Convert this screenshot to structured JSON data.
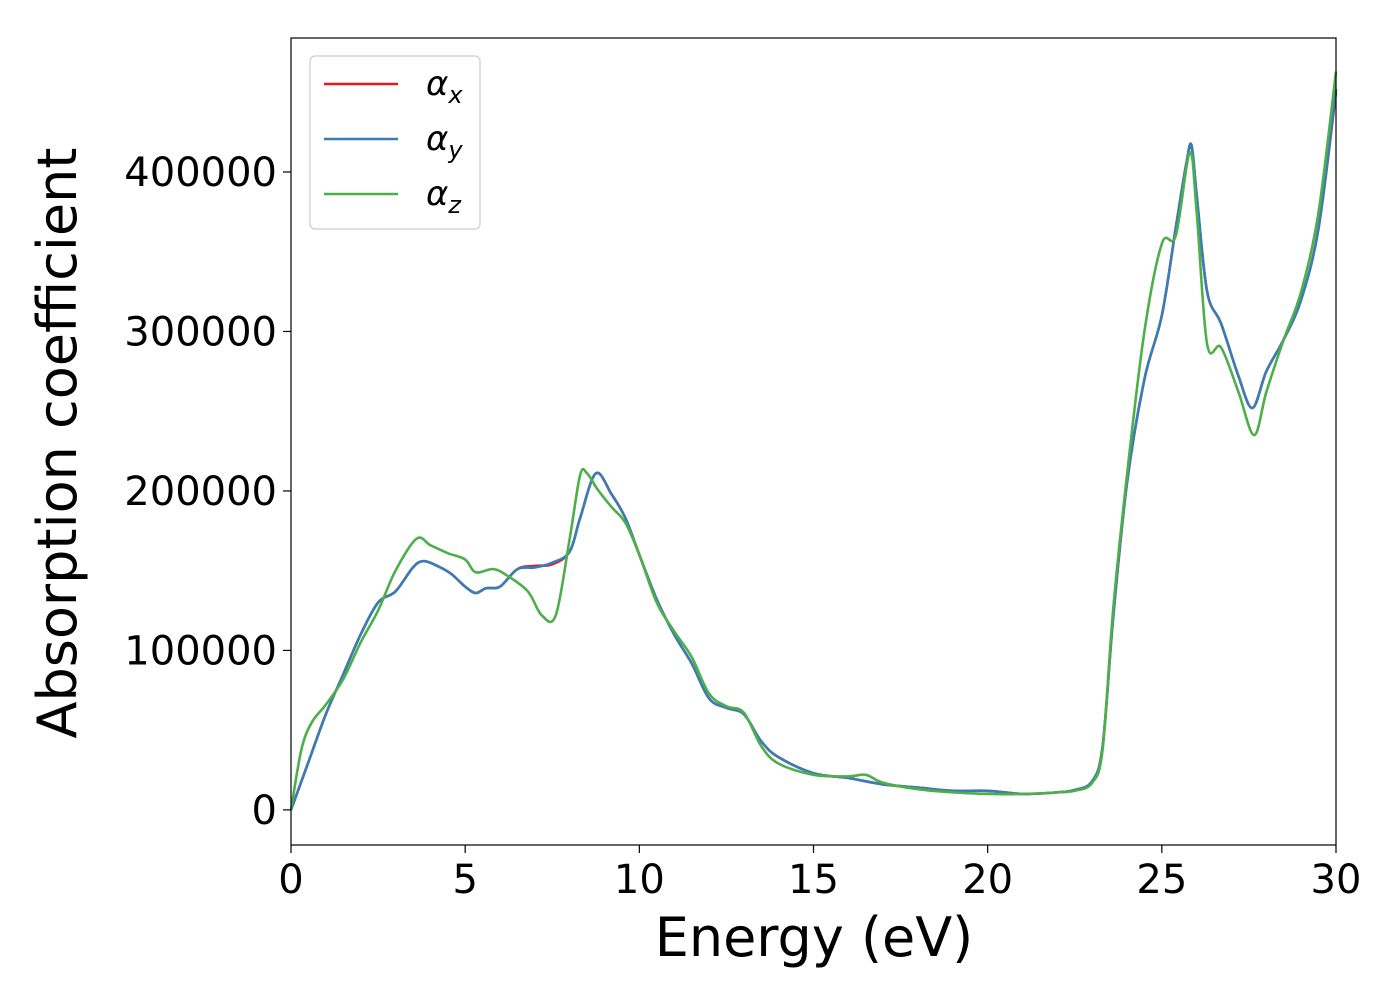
{
  "chart_data": {
    "type": "line",
    "title": "",
    "xlabel": "Energy (eV)",
    "ylabel": "Absorption coefficient",
    "xlim": [
      0,
      30
    ],
    "ylim": [
      -22000,
      484000
    ],
    "xticks": [
      0,
      5,
      10,
      15,
      20,
      25,
      30
    ],
    "yticks": [
      0,
      100000,
      200000,
      300000,
      400000
    ],
    "xtick_labels": [
      "0",
      "5",
      "10",
      "15",
      "20",
      "25",
      "30"
    ],
    "ytick_labels": [
      "0",
      "100000",
      "200000",
      "300000",
      "400000"
    ],
    "grid": false,
    "legend_position": "top-left",
    "legend": [
      {
        "symbol": "α",
        "sub": "x",
        "color": "#e41a1c"
      },
      {
        "symbol": "α",
        "sub": "y",
        "color": "#377eb8"
      },
      {
        "symbol": "α",
        "sub": "z",
        "color": "#4daf4a"
      }
    ],
    "series": [
      {
        "name": "αx",
        "color": "#e41a1c",
        "x": [
          0,
          0.5,
          1,
          1.5,
          2,
          2.5,
          3,
          3.5,
          3.8,
          4.2,
          4.6,
          5.0,
          5.3,
          5.6,
          6.0,
          6.5,
          7.0,
          7.5,
          8.0,
          8.3,
          8.75,
          9.2,
          9.6,
          10,
          10.5,
          11,
          11.5,
          12,
          12.5,
          13,
          13.5,
          14,
          15,
          16,
          17,
          18,
          19,
          20,
          21,
          22,
          22.5,
          23,
          23.3,
          23.6,
          24,
          24.5,
          25,
          25.4,
          25.7,
          25.85,
          26,
          26.3,
          26.7,
          27.2,
          27.6,
          28.0,
          28.5,
          29,
          29.5,
          30
        ],
        "y": [
          0,
          30000,
          60000,
          85000,
          110000,
          130000,
          137000,
          152000,
          156000,
          153000,
          148000,
          140000,
          136000,
          139000,
          140000,
          151000,
          153000,
          154000,
          162000,
          183000,
          211000,
          198000,
          183000,
          160000,
          132000,
          110000,
          92000,
          70000,
          64000,
          60000,
          43000,
          33000,
          23000,
          20000,
          16000,
          14000,
          12000,
          12000,
          10000,
          11000,
          12500,
          18000,
          40000,
          120000,
          205000,
          270000,
          310000,
          365000,
          405000,
          416000,
          385000,
          325000,
          305000,
          272000,
          252000,
          275000,
          295000,
          320000,
          365000,
          450000
        ]
      },
      {
        "name": "αy",
        "color": "#377eb8",
        "x": [
          0,
          0.5,
          1,
          1.5,
          2,
          2.5,
          3,
          3.5,
          3.8,
          4.2,
          4.6,
          5.0,
          5.3,
          5.6,
          6.0,
          6.5,
          7.0,
          7.5,
          8.0,
          8.3,
          8.75,
          9.2,
          9.6,
          10,
          10.5,
          11,
          11.5,
          12,
          12.5,
          13,
          13.5,
          14,
          15,
          16,
          17,
          18,
          19,
          20,
          21,
          22,
          22.5,
          23,
          23.3,
          23.6,
          24,
          24.5,
          25,
          25.4,
          25.7,
          25.85,
          26,
          26.3,
          26.7,
          27.2,
          27.6,
          28.0,
          28.5,
          29,
          29.5,
          30
        ],
        "y": [
          0,
          30000,
          60000,
          85000,
          110000,
          130000,
          137000,
          152000,
          156000,
          153000,
          148000,
          140000,
          136000,
          139000,
          140000,
          151000,
          152000,
          155000,
          162000,
          183000,
          211000,
          198000,
          183000,
          160000,
          132000,
          110000,
          92000,
          70000,
          64000,
          60000,
          43000,
          33000,
          23000,
          20000,
          16000,
          14000,
          12000,
          12000,
          10000,
          11000,
          12500,
          18000,
          40000,
          120000,
          205000,
          270000,
          310000,
          365000,
          405000,
          417000,
          386000,
          325000,
          305000,
          272000,
          252000,
          275000,
          295000,
          320000,
          365000,
          452000
        ]
      },
      {
        "name": "αz",
        "color": "#4daf4a",
        "x": [
          0,
          0.3,
          0.6,
          1,
          1.5,
          2,
          2.5,
          3,
          3.6,
          4.0,
          4.5,
          5.0,
          5.3,
          5.8,
          6.2,
          6.8,
          7.2,
          7.6,
          8.0,
          8.3,
          8.5,
          8.8,
          9.2,
          9.6,
          10,
          10.5,
          11,
          11.5,
          12,
          12.5,
          13,
          13.5,
          14,
          15,
          16,
          16.5,
          17,
          18,
          19,
          20,
          21,
          22,
          22.5,
          23,
          23.3,
          23.6,
          24,
          24.5,
          25,
          25.4,
          25.8,
          26.0,
          26.3,
          26.7,
          27.2,
          27.65,
          28.0,
          28.5,
          29,
          29.5,
          30
        ],
        "y": [
          0,
          38000,
          55000,
          66000,
          82000,
          105000,
          125000,
          150000,
          170000,
          166000,
          161000,
          157000,
          149000,
          151000,
          147000,
          137000,
          122000,
          122000,
          170000,
          210000,
          211000,
          201000,
          190000,
          180000,
          160000,
          130000,
          112000,
          96000,
          73000,
          65000,
          61000,
          40000,
          29000,
          22000,
          21000,
          22000,
          17000,
          13000,
          11000,
          10000,
          10000,
          11000,
          12000,
          17000,
          38000,
          125000,
          210000,
          300000,
          355000,
          360000,
          412000,
          375000,
          292000,
          290000,
          262000,
          235000,
          262000,
          295000,
          325000,
          375000,
          463000
        ]
      }
    ]
  }
}
